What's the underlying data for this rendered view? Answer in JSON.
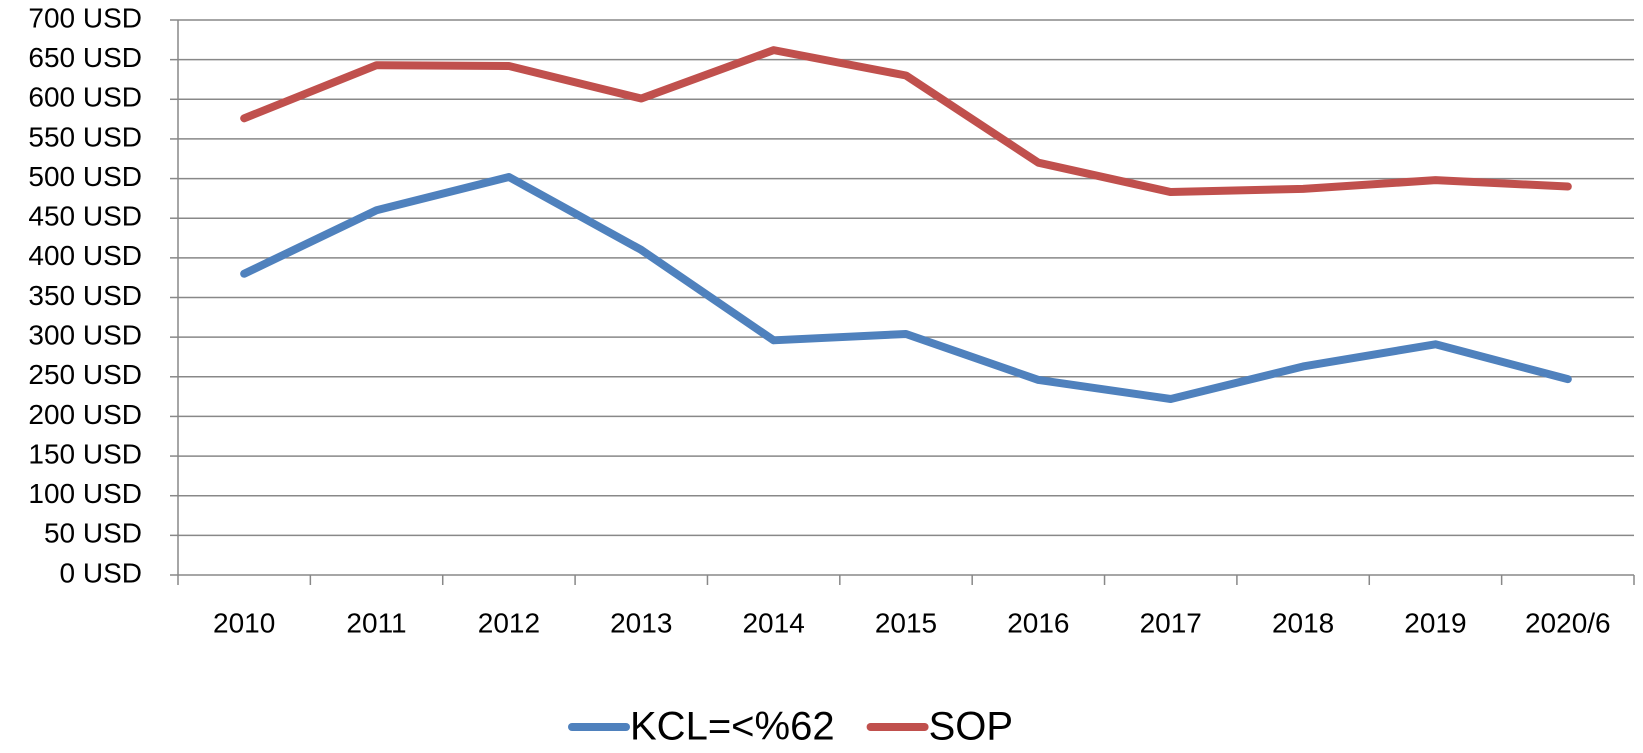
{
  "chart_data": {
    "type": "line",
    "categories": [
      "2010",
      "2011",
      "2012",
      "2013",
      "2014",
      "2015",
      "2016",
      "2017",
      "2018",
      "2019",
      "2020/6"
    ],
    "series": [
      {
        "name": "KCL=<%62",
        "color": "#4f81bd",
        "values": [
          380,
          460,
          502,
          410,
          296,
          304,
          246,
          222,
          263,
          291,
          247
        ]
      },
      {
        "name": "SOP",
        "color": "#c0504d",
        "values": [
          576,
          643,
          642,
          601,
          662,
          630,
          520,
          483,
          487,
          498,
          490
        ]
      }
    ],
    "ylim": [
      0,
      700
    ],
    "yticks": [
      {
        "value": 0,
        "label": "0 USD"
      },
      {
        "value": 50,
        "label": "50 USD"
      },
      {
        "value": 100,
        "label": "100 USD"
      },
      {
        "value": 150,
        "label": "150 USD"
      },
      {
        "value": 200,
        "label": "200 USD"
      },
      {
        "value": 250,
        "label": "250 USD"
      },
      {
        "value": 300,
        "label": "300 USD"
      },
      {
        "value": 350,
        "label": "350 USD"
      },
      {
        "value": 400,
        "label": "400 USD"
      },
      {
        "value": 450,
        "label": "450 USD"
      },
      {
        "value": 500,
        "label": "500 USD"
      },
      {
        "value": 550,
        "label": "550 USD"
      },
      {
        "value": 600,
        "label": "600 USD"
      },
      {
        "value": 650,
        "label": "650 USD"
      },
      {
        "value": 700,
        "label": "700 USD"
      }
    ],
    "grid": true,
    "legend": "bottom"
  }
}
